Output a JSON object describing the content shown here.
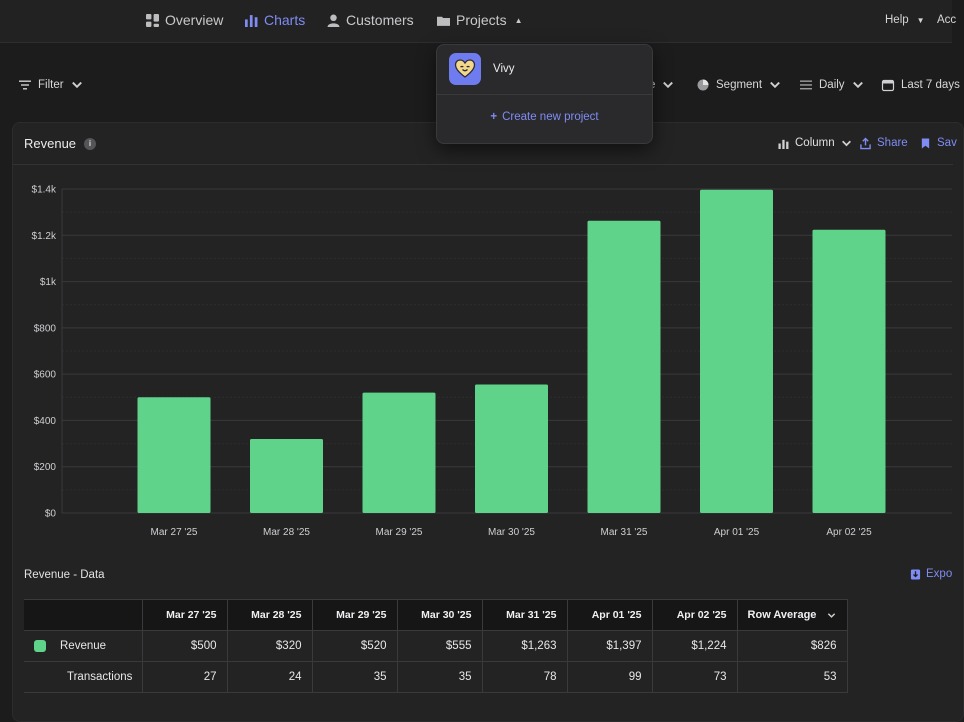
{
  "nav": {
    "items": [
      {
        "label": "Overview",
        "icon": "overview-icon",
        "active": false
      },
      {
        "label": "Charts",
        "icon": "charts-icon",
        "active": true
      },
      {
        "label": "Customers",
        "icon": "customers-icon",
        "active": false
      },
      {
        "label": "Projects",
        "icon": "folder-icon",
        "active": false
      }
    ],
    "help_label": "Help",
    "account_label": "Acc"
  },
  "toolbar": {
    "filter_label": "Filter",
    "hidden_label": "e",
    "segment_label": "Segment",
    "resolution_label": "Daily",
    "range_label": "Last 7 days"
  },
  "card": {
    "title": "Revenue",
    "info_symbol": "i",
    "chart_type_label": "Column",
    "share_label": "Share",
    "save_label": "Sav"
  },
  "projects_dropdown": {
    "project_name": "Vivy",
    "create_label": "Create new project",
    "create_symbol": "+"
  },
  "data_section": {
    "title": "Revenue - Data",
    "export_label": "Expo",
    "row_average_label": "Row Average",
    "revenue_label": "Revenue",
    "transactions_label": "Transactions",
    "dates": [
      "Mar 27 '25",
      "Mar 28 '25",
      "Mar 29 '25",
      "Mar 30 '25",
      "Mar 31 '25",
      "Apr 01 '25",
      "Apr 02 '25"
    ],
    "revenue": [
      "$500",
      "$320",
      "$520",
      "$555",
      "$1,263",
      "$1,397",
      "$1,224"
    ],
    "revenue_avg": "$826",
    "transactions": [
      "27",
      "24",
      "35",
      "35",
      "78",
      "99",
      "73"
    ],
    "transactions_avg": "53"
  },
  "colors": {
    "accent": "#7f8cf3",
    "bar": "#5fd389",
    "background": "#1c1c1d"
  },
  "chart_data": {
    "type": "bar",
    "title": "Revenue",
    "categories": [
      "Mar 27 '25",
      "Mar 28 '25",
      "Mar 29 '25",
      "Mar 30 '25",
      "Mar 31 '25",
      "Apr 01 '25",
      "Apr 02 '25"
    ],
    "values": [
      500,
      320,
      520,
      555,
      1263,
      1397,
      1224
    ],
    "ylim": [
      0,
      1400
    ],
    "yticks": [
      0,
      200,
      400,
      600,
      800,
      1000,
      1200,
      1400
    ],
    "ytick_labels": [
      "$0",
      "$200",
      "$400",
      "$600",
      "$800",
      "$1k",
      "$1.2k",
      "$1.4k"
    ],
    "xlabel": "",
    "ylabel": "",
    "grid": true
  }
}
